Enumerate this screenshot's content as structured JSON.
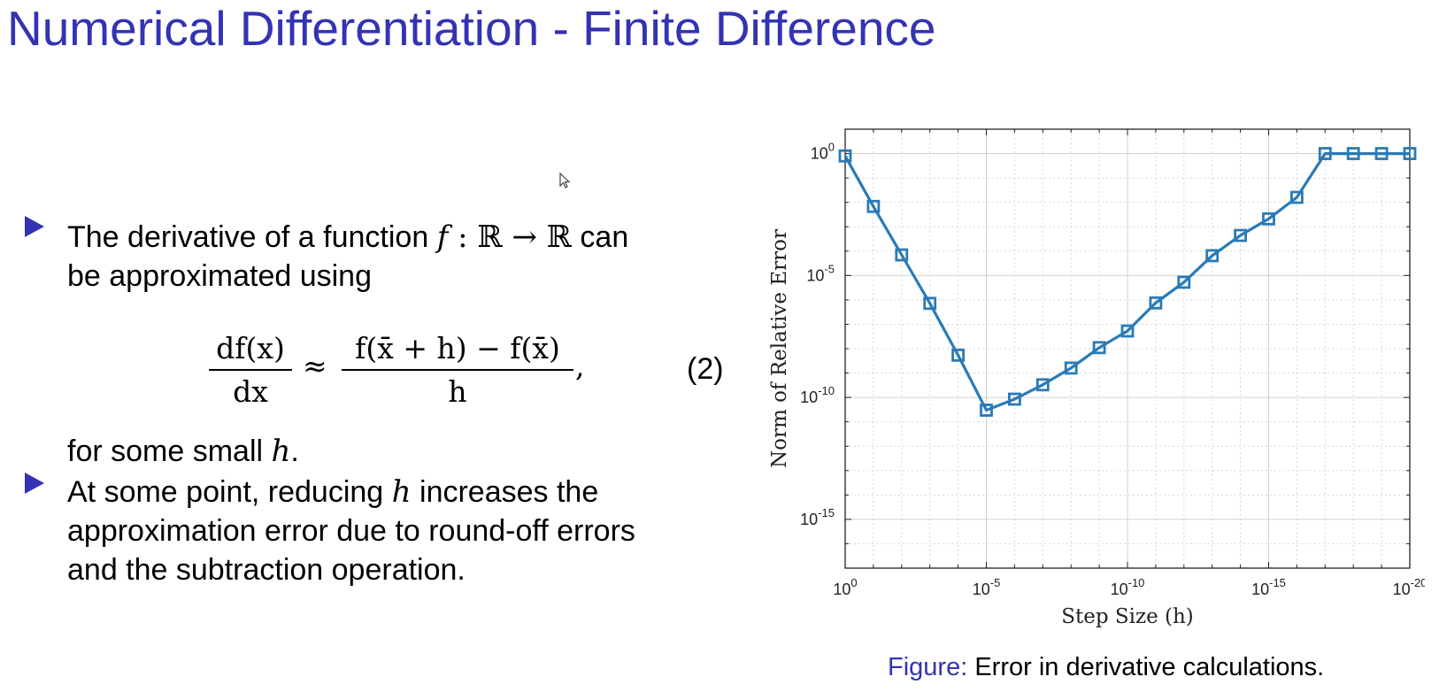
{
  "slide": {
    "title": "Numerical Differentiation - Finite Difference"
  },
  "bullets": [
    {
      "line1_pre": "The derivative of a function ",
      "line1_math_f": "f",
      "line1_math_rest": " : ℝ → ℝ",
      "line1_post": " can",
      "line2": "be approximated using",
      "after_eq_pre": "for some small ",
      "after_eq_math": "h",
      "after_eq_post": "."
    },
    {
      "line1_pre": "At some point, reducing ",
      "line1_math": "h",
      "line1_post": " increases the",
      "line2": "approximation error due to round-off errors",
      "line3": "and the subtraction operation."
    }
  ],
  "equation": {
    "lhs_num": "df(x)",
    "lhs_den": "dx",
    "approx": "≈",
    "rhs_num": "f(x̄ + h) − f(x̄)",
    "rhs_den": "h",
    "comma": ",",
    "number": "(2)"
  },
  "figure": {
    "caption_label": "Figure:",
    "caption_text": " Error in derivative calculations."
  },
  "chart_data": {
    "type": "line",
    "xlabel": "Step Size (h)",
    "ylabel": "Norm of Relative Error",
    "x_scale": "log",
    "y_scale": "log",
    "x_reversed": true,
    "xlim": [
      1,
      1e-20
    ],
    "ylim": [
      1e-17,
      10.0
    ],
    "grid": true,
    "minor_grid": true,
    "x_ticks": [
      {
        "base": "10",
        "exp": "0"
      },
      {
        "base": "10",
        "exp": "-5"
      },
      {
        "base": "10",
        "exp": "-10"
      },
      {
        "base": "10",
        "exp": "-15"
      },
      {
        "base": "10",
        "exp": "-20"
      }
    ],
    "y_ticks": [
      {
        "base": "10",
        "exp": "0"
      },
      {
        "base": "10",
        "exp": "-5"
      },
      {
        "base": "10",
        "exp": "-10"
      },
      {
        "base": "10",
        "exp": "-15"
      }
    ],
    "color": "#2a7ab6",
    "marker": "square",
    "series": [
      {
        "x": [
          1,
          0.1,
          0.01,
          0.001,
          0.0001,
          1e-05,
          1e-06,
          1e-07,
          1e-08,
          1e-09,
          1e-10,
          1e-11,
          1e-12,
          1e-13,
          1e-14,
          1e-15,
          1e-16,
          1e-17,
          1e-18,
          1e-19,
          1e-20
        ],
        "y": [
          0.8,
          0.0068,
          7e-05,
          7.2e-07,
          5.4e-09,
          3e-11,
          8.5e-11,
          3.3e-10,
          1.6e-09,
          1.1e-08,
          5.3e-08,
          7.5e-07,
          5.3e-06,
          6.5e-05,
          0.00044,
          0.0021,
          0.016,
          1.0,
          1.0,
          1.0,
          1.0
        ]
      }
    ]
  }
}
